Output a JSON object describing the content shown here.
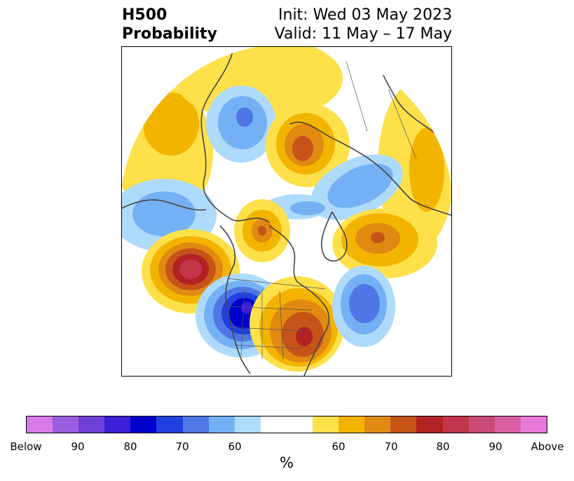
{
  "title": {
    "left_line1": "H500",
    "left_line2": "Probability",
    "right_line1": "Init: Wed 03 May 2023",
    "right_line2": "Valid: 11 May – 17 May"
  },
  "colors": {
    "below": [
      "#d77ae8",
      "#9b5de0",
      "#6f3fd9",
      "#3a1fd6",
      "#0000cc",
      "#2140e0",
      "#4f77e6",
      "#76b0f4",
      "#aedafb"
    ],
    "neutral": "#ffffff",
    "above": [
      "#fee04a",
      "#f3b400",
      "#e08a12",
      "#c65418",
      "#b22222",
      "#c3354b",
      "#cc4a78",
      "#da5ea6",
      "#e77ad8"
    ]
  },
  "colorbar": {
    "tick_labels": [
      "Below",
      "90",
      "80",
      "70",
      "60",
      "60",
      "70",
      "80",
      "90",
      "Above"
    ],
    "unit": "%"
  },
  "map": {
    "projection": "north polar stereographic",
    "anomalies": [
      {
        "region": "western US / Great Basin",
        "sign": "below",
        "peak_percent": 80
      },
      {
        "region": "eastern North Pacific / Gulf of Alaska",
        "sign": "above",
        "peak_percent": 80
      },
      {
        "region": "central & eastern US",
        "sign": "above",
        "peak_percent": 80
      },
      {
        "region": "North Atlantic",
        "sign": "below",
        "peak_percent": 70
      },
      {
        "region": "Eastern Siberia",
        "sign": "below",
        "peak_percent": 70
      },
      {
        "region": "Central Siberia",
        "sign": "above",
        "peak_percent": 75
      },
      {
        "region": "Scandinavia / NW Russia",
        "sign": "below",
        "peak_percent": 60
      },
      {
        "region": "Greenland",
        "sign": "above",
        "peak_percent": 70
      },
      {
        "region": "Arctic Canada",
        "sign": "above",
        "peak_percent": 70
      },
      {
        "region": "Bering Sea",
        "sign": "below",
        "peak_percent": 60
      }
    ]
  }
}
